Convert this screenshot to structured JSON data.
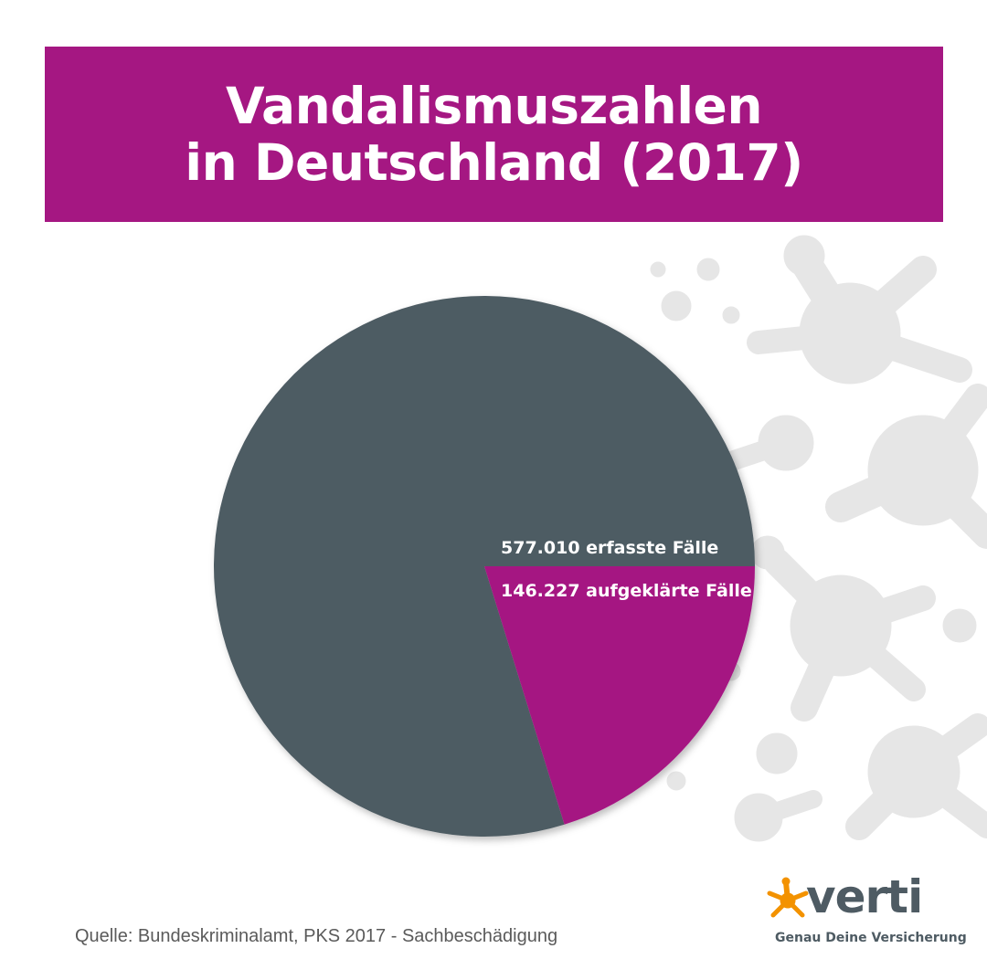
{
  "header": {
    "title_line1": "Vandalismuszahlen",
    "title_line2": "in Deutschland (2017)"
  },
  "chart_data": {
    "type": "pie",
    "categories": [
      "577.010 erfasste Fälle",
      "146.227 aufgeklärte Fälle"
    ],
    "values": [
      577010,
      146227
    ],
    "slices": [
      {
        "label": "577.010 erfasste Fälle",
        "value": 577010,
        "color": "#4e5b63"
      },
      {
        "label": "146.227 aufgeklärte Fälle",
        "value": 146227,
        "color": "#a51782"
      }
    ],
    "labels_note": "",
    "title": "Vandalismuszahlen in Deutschland (2017)"
  },
  "footer": {
    "source": "Quelle: Bundeskriminalamt, PKS 2017 - Sachbeschädigung"
  },
  "logo": {
    "name": "verti",
    "tagline": "Genau Deine Versicherung",
    "icon": "verti-star-icon",
    "star_color": "#f39200"
  },
  "colors": {
    "brand_magenta": "#a51782",
    "slate": "#4e5b63",
    "decoration": "#e4e4e4"
  }
}
